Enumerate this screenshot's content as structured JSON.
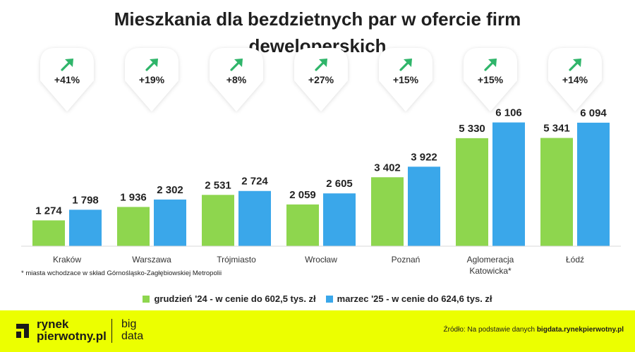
{
  "chart_data": {
    "type": "bar",
    "title": "Mieszkania dla bezdzietnych par w ofercie firm deweloperskich",
    "title_line1": "Mieszkania dla bezdzietnych par w ofercie firm",
    "title_line2": "deweloperskich",
    "categories": [
      "Kraków",
      "Warszawa",
      "Trójmiasto",
      "Wrocław",
      "Poznań",
      "Aglomeracja Katowicka*",
      "Łódź"
    ],
    "category_lines": [
      [
        "Kraków"
      ],
      [
        "Warszawa"
      ],
      [
        "Trójmiasto"
      ],
      [
        "Wrocław"
      ],
      [
        "Poznań"
      ],
      [
        "Aglomeracja",
        "Katowicka*"
      ],
      [
        "Łódź"
      ]
    ],
    "series": [
      {
        "name": "grudzień '24 - w cenie do 602,5 tys. zł",
        "color": "#8ed64e",
        "values": [
          1274,
          1936,
          2531,
          2059,
          3402,
          5330,
          5341
        ],
        "labels": [
          "1 274",
          "1 936",
          "2 531",
          "2 059",
          "3 402",
          "5 330",
          "5 341"
        ]
      },
      {
        "name": "marzec '25 - w cenie do 624,6 tys. zł",
        "color": "#3aa7ea",
        "values": [
          1798,
          2302,
          2724,
          2605,
          3922,
          6106,
          6094
        ],
        "labels": [
          "1 798",
          "2 302",
          "2 724",
          "2 605",
          "3 922",
          "6 106",
          "6 094"
        ]
      }
    ],
    "changes": [
      "+41%",
      "+19%",
      "+8%",
      "+27%",
      "+15%",
      "+15%",
      "+14%"
    ],
    "change_icon": "arrow-up-right-icon",
    "change_icon_color": "#2fb56a",
    "ylim": [
      0,
      6300
    ],
    "grid": false,
    "legend_position": "bottom",
    "xlabel": "",
    "ylabel": ""
  },
  "footnote": "* miasta wchodzace w skład Górnośląsko-Zagłębiowskiej Metropolii",
  "footer": {
    "background": "#ecff00",
    "logo_line1": "rynek",
    "logo_line2": "pierwotny.pl",
    "brand_line1": "big",
    "brand_line2": "data",
    "source_prefix": "Źródło: Na podstawie danych ",
    "source_site": "bigdata.rynekpierwotny.pl"
  }
}
